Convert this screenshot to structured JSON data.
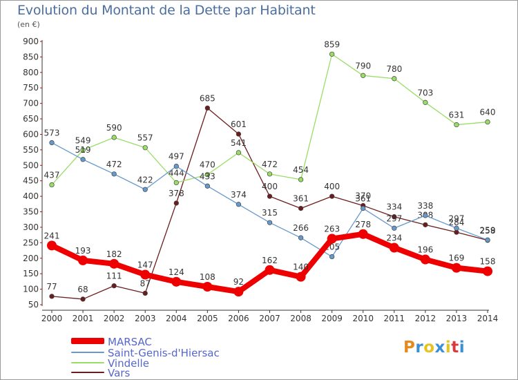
{
  "header": {
    "title": "Evolution du Montant de la Dette par Habitant",
    "unit": "(en €)"
  },
  "logo": {
    "text": "Proxiti",
    "colors": [
      "#e68a1f",
      "#3a8fd6",
      "#e6c41f",
      "#3a8fd6",
      "#e6c41f",
      "#d63a3a",
      "#3a8fd6"
    ]
  },
  "chart_data": {
    "type": "line",
    "x": [
      "2000",
      "2001",
      "2002",
      "2003",
      "2004",
      "2005",
      "2006",
      "2007",
      "2008",
      "2009",
      "2010",
      "2011",
      "2012",
      "2013",
      "2014"
    ],
    "ylim": [
      50,
      900
    ],
    "yticks": [
      50,
      100,
      150,
      200,
      250,
      300,
      350,
      400,
      450,
      500,
      550,
      600,
      650,
      700,
      750,
      800,
      850,
      900
    ],
    "grid": false,
    "legend_position": "bottom-left",
    "series": [
      {
        "name": "Vars",
        "color": "#6b1c1c",
        "values": [
          77,
          68,
          111,
          87,
          378,
          685,
          601,
          400,
          361,
          400,
          370,
          334,
          308,
          284,
          258
        ]
      },
      {
        "name": "Vindelle",
        "color": "#99dd66",
        "values": [
          437,
          549,
          590,
          557,
          444,
          470,
          541,
          472,
          454,
          859,
          790,
          780,
          703,
          631,
          640
        ]
      },
      {
        "name": "Saint-Genis-d'Hiersac",
        "color": "#6699cc",
        "values": [
          573,
          519,
          472,
          422,
          497,
          433,
          374,
          315,
          266,
          205,
          361,
          297,
          338,
          297,
          259
        ]
      },
      {
        "name": "MARSAC",
        "color": "#ee0000",
        "values": [
          241,
          193,
          182,
          147,
          124,
          108,
          92,
          162,
          140,
          263,
          278,
          234,
          196,
          169,
          158
        ]
      }
    ],
    "legend_order": [
      "MARSAC",
      "Saint-Genis-d'Hiersac",
      "Vindelle",
      "Vars"
    ]
  }
}
